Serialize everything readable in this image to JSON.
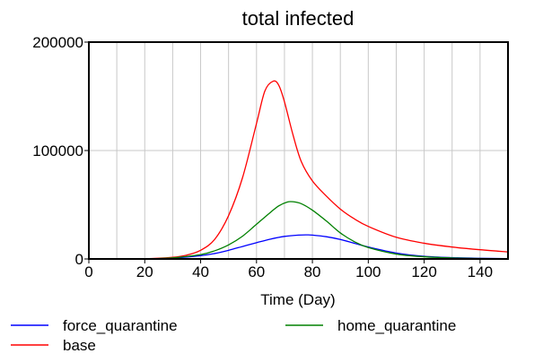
{
  "chart_data": {
    "type": "line",
    "title": "total infected",
    "xlabel": "Time (Day)",
    "ylabel": "",
    "xlim": [
      0,
      150
    ],
    "ylim": [
      0,
      200000
    ],
    "x_ticks": [
      0,
      20,
      40,
      60,
      80,
      100,
      120,
      140
    ],
    "y_ticks": [
      0,
      100000,
      200000
    ],
    "grid": true,
    "legend_position": "bottom",
    "series": [
      {
        "name": "force_quarantine",
        "color": "#0000ff",
        "x": [
          0,
          20,
          30,
          40,
          45,
          50,
          55,
          60,
          65,
          70,
          75,
          78,
          80,
          85,
          90,
          95,
          100,
          110,
          120,
          130,
          140,
          150
        ],
        "y": [
          0,
          100,
          800,
          3000,
          5000,
          8000,
          11500,
          15000,
          18300,
          20800,
          22000,
          22200,
          22000,
          20500,
          18000,
          14500,
          11000,
          5500,
          2500,
          1200,
          600,
          300
        ]
      },
      {
        "name": "base",
        "color": "#ff0000",
        "x": [
          0,
          20,
          30,
          35,
          40,
          45,
          50,
          55,
          60,
          63,
          66,
          68,
          70,
          73,
          76,
          80,
          85,
          90,
          95,
          100,
          110,
          120,
          130,
          140,
          150
        ],
        "y": [
          0,
          200,
          1500,
          3500,
          8000,
          18000,
          40000,
          75000,
          125000,
          155000,
          164000,
          160000,
          145000,
          115000,
          90000,
          72000,
          58000,
          46000,
          37000,
          30000,
          20000,
          14500,
          11000,
          8500,
          6500
        ]
      },
      {
        "name": "home_quarantine",
        "color": "#008000",
        "x": [
          0,
          20,
          30,
          40,
          45,
          50,
          55,
          60,
          65,
          68,
          71,
          73,
          76,
          80,
          85,
          90,
          95,
          100,
          110,
          120,
          130,
          140,
          150
        ],
        "y": [
          0,
          100,
          1000,
          4000,
          7500,
          13000,
          21000,
          32000,
          43000,
          49000,
          52500,
          52800,
          51000,
          45000,
          35000,
          24000,
          16000,
          10500,
          4500,
          2000,
          900,
          400,
          200
        ]
      }
    ]
  }
}
